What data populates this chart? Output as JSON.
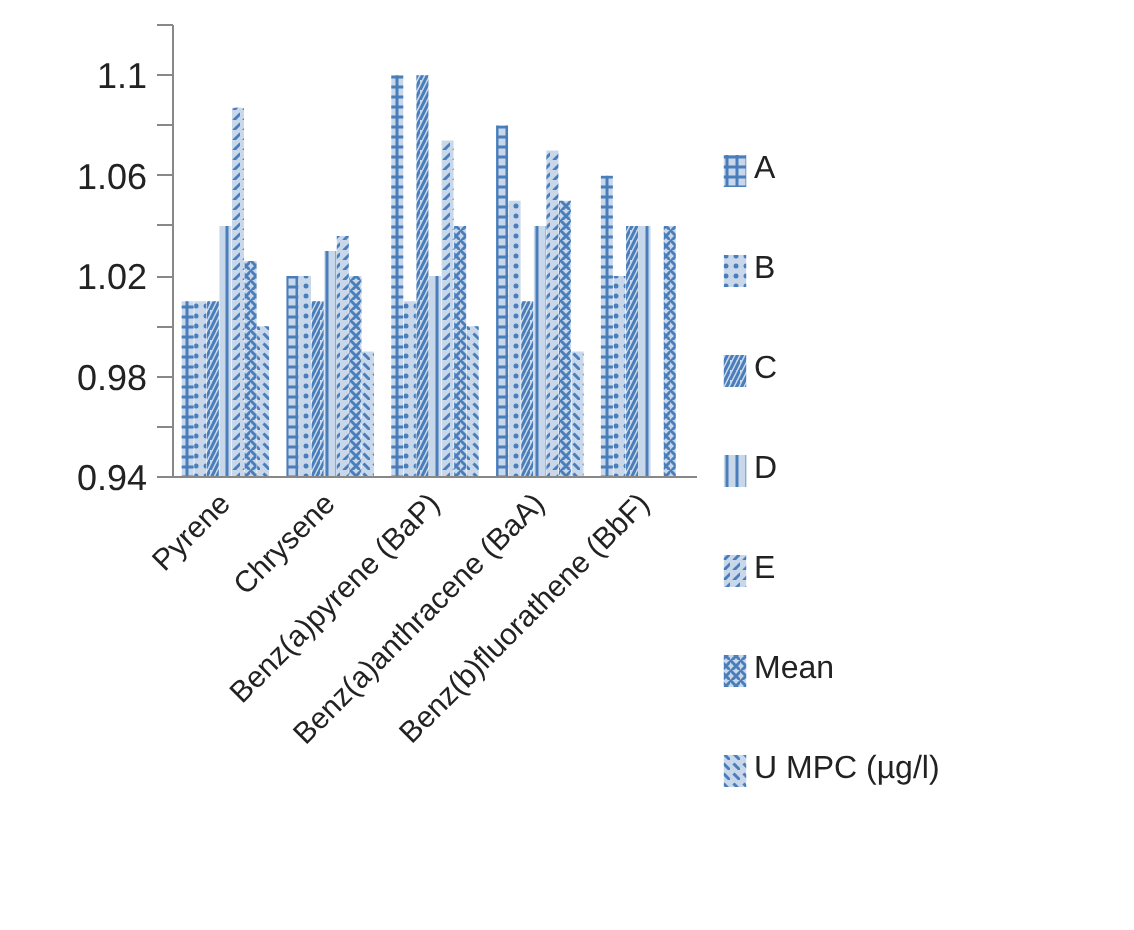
{
  "chart_data": {
    "type": "bar",
    "categories": [
      "Pyrene",
      "Chrysene",
      "Benz(a)pyrene (BaP)",
      "Benz(a)anthracene (BaA)",
      "Benz(b)fluorathene (BbF)"
    ],
    "series": [
      {
        "name": "A",
        "color": "#4a7ebb",
        "values": [
          1.01,
          1.02,
          1.1,
          1.08,
          1.06
        ]
      },
      {
        "name": "B",
        "color": "#4a7ebb",
        "values": [
          1.01,
          1.02,
          1.01,
          1.05,
          1.02
        ]
      },
      {
        "name": "C",
        "color": "#4a7ebb",
        "values": [
          1.01,
          1.01,
          1.1,
          1.01,
          1.04
        ]
      },
      {
        "name": "D",
        "color": "#4a7ebb",
        "values": [
          1.04,
          1.03,
          1.02,
          1.04,
          1.04
        ]
      },
      {
        "name": "E",
        "color": "#4a7ebb",
        "values": [
          1.087,
          1.036,
          1.074,
          1.07,
          null
        ]
      },
      {
        "name": "Mean",
        "color": "#4a7ebb",
        "values": [
          1.026,
          1.02,
          1.04,
          1.05,
          1.04
        ]
      },
      {
        "name": "U MPC (µg/l)",
        "color": "#4a7ebb",
        "values": [
          1.0,
          0.99,
          1.0,
          0.99,
          null
        ]
      }
    ],
    "ylim": [
      0.94,
      1.12
    ],
    "yticks": [
      0.94,
      {
        "value": 0.96,
        "label": null
      },
      0.98,
      {
        "value": 1.0,
        "label": null
      },
      1.02,
      {
        "value": 1.04,
        "label": null
      },
      1.06,
      {
        "value": 1.08,
        "label": null
      },
      1.1,
      {
        "value": 1.12,
        "label": null
      }
    ],
    "grid": false,
    "legend": "right"
  }
}
